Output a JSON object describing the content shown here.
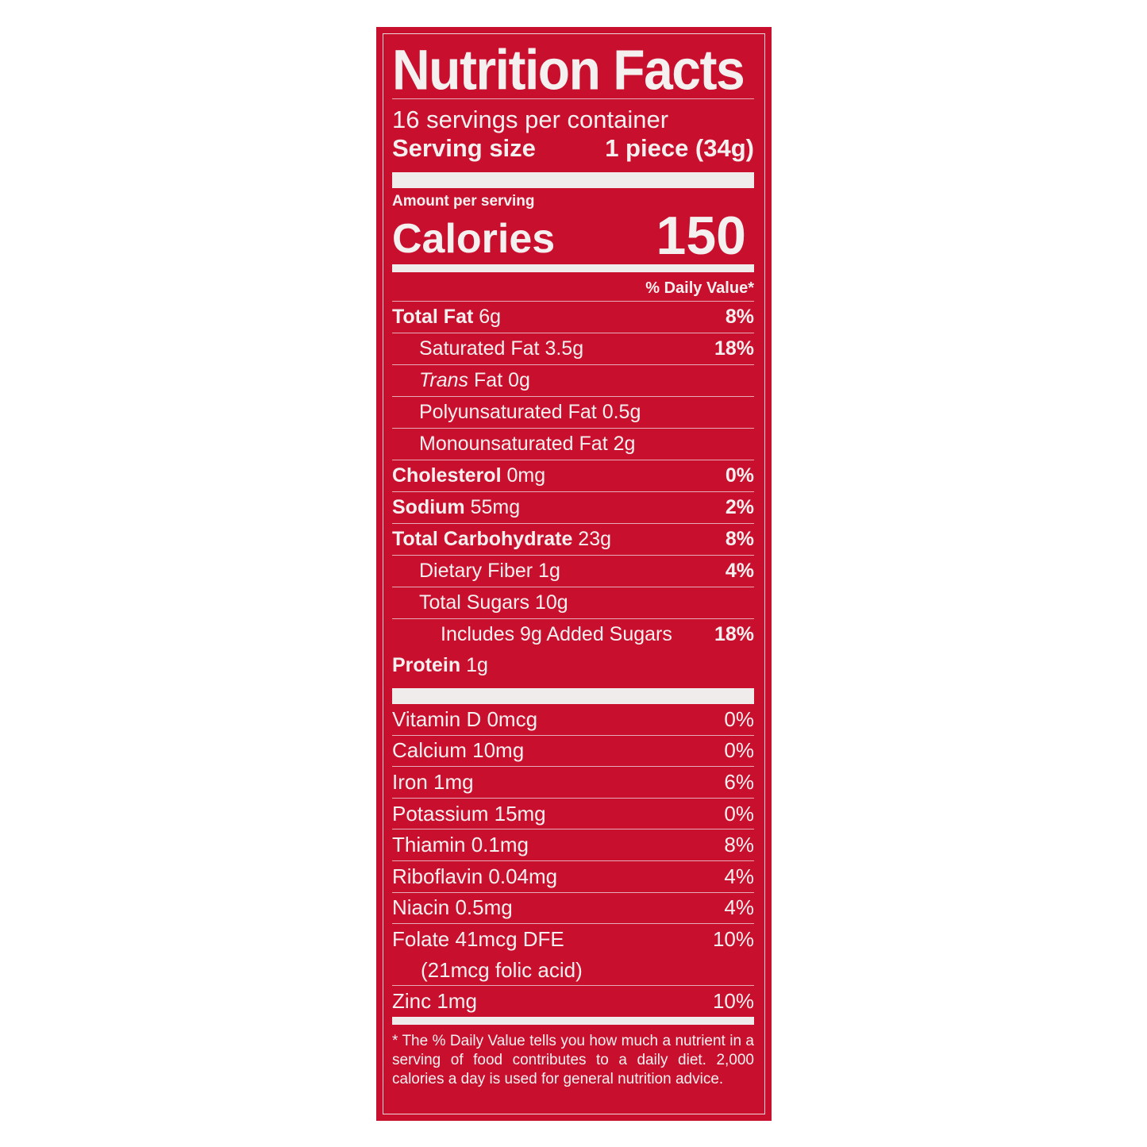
{
  "colors": {
    "background": "#c8102e",
    "text": "#f4f0f0"
  },
  "title": "Nutrition Facts",
  "servings_per_container": "16 servings per container",
  "serving_size": {
    "label": "Serving size",
    "value": "1 piece (34g)"
  },
  "amount_per_serving": "Amount per serving",
  "calories": {
    "label": "Calories",
    "value": "150"
  },
  "daily_value_header": "% Daily Value*",
  "nutrients": [
    {
      "name": "Total Fat",
      "amount": "6g",
      "dv": "8%"
    },
    {
      "name": "Saturated Fat",
      "amount": "3.5g",
      "dv": "18%"
    },
    {
      "name": "Trans",
      "name_rest": "Fat",
      "amount": "0g",
      "dv": ""
    },
    {
      "name": "Polyunsaturated Fat",
      "amount": "0.5g",
      "dv": ""
    },
    {
      "name": "Monounsaturated Fat",
      "amount": "2g",
      "dv": ""
    },
    {
      "name": "Cholesterol",
      "amount": "0mg",
      "dv": "0%"
    },
    {
      "name": "Sodium",
      "amount": "55mg",
      "dv": "2%"
    },
    {
      "name": "Total Carbohydrate",
      "amount": "23g",
      "dv": "8%"
    },
    {
      "name": "Dietary Fiber",
      "amount": "1g",
      "dv": "4%"
    },
    {
      "name": "Total Sugars",
      "amount": "10g",
      "dv": ""
    },
    {
      "name": "Includes 9g Added Sugars",
      "amount": "",
      "dv": "18%"
    },
    {
      "name": "Protein",
      "amount": "1g",
      "dv": ""
    }
  ],
  "vitamins": [
    {
      "label": "Vitamin D 0mcg",
      "dv": "0%"
    },
    {
      "label": "Calcium 10mg",
      "dv": "0%"
    },
    {
      "label": "Iron 1mg",
      "dv": "6%"
    },
    {
      "label": "Potassium 15mg",
      "dv": "0%"
    },
    {
      "label": "Thiamin 0.1mg",
      "dv": "8%"
    },
    {
      "label": "Riboflavin 0.04mg",
      "dv": "4%"
    },
    {
      "label": "Niacin 0.5mg",
      "dv": "4%"
    },
    {
      "label": "Folate 41mcg DFE",
      "dv": "10%"
    },
    {
      "label": "(21mcg folic acid)",
      "dv": ""
    },
    {
      "label": "Zinc 1mg",
      "dv": "10%"
    }
  ],
  "footnote": "* The % Daily Value tells you how much a nutrient in a serving of food contributes to a daily diet. 2,000 calories a day is used for general nutrition advice."
}
